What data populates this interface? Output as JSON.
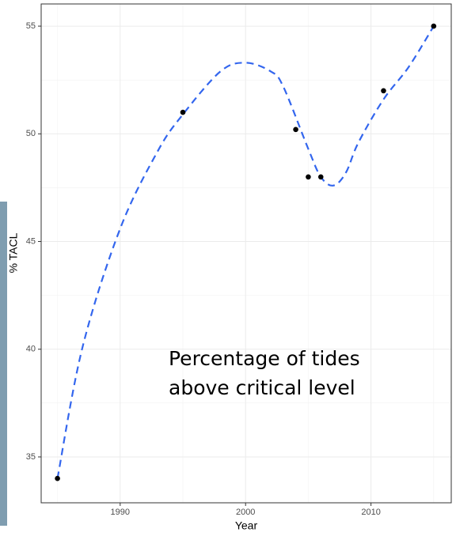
{
  "chart_data": {
    "type": "scatter",
    "x_label": "Year",
    "y_label": "% TACL",
    "annotation": [
      "Percentage of tides",
      "above critical level"
    ],
    "points": {
      "color": "#000000",
      "x": [
        1985,
        1995,
        2004,
        2005,
        2006,
        2011,
        2015
      ],
      "y": [
        34,
        51,
        50.2,
        48,
        48,
        52,
        55
      ]
    },
    "fit": {
      "color": "#3366ee",
      "dashed": true,
      "x": [
        1985,
        1987,
        1990,
        1993,
        1995,
        1998,
        2000,
        2002,
        2003,
        2005,
        2006,
        2007,
        2008,
        2009,
        2011,
        2013,
        2015
      ],
      "y": [
        34,
        40.1,
        45.6,
        49.2,
        50.9,
        52.9,
        53.3,
        52.9,
        52.2,
        49.3,
        48.0,
        47.6,
        48.2,
        49.6,
        51.6,
        53.1,
        55
      ]
    },
    "xlim": [
      1983.7,
      2016.4
    ],
    "ylim": [
      32.87,
      56.03
    ],
    "xticks": [
      1990,
      2000,
      2010
    ],
    "yticks": [
      35,
      40,
      45,
      50,
      55
    ],
    "x_minor_grid": [
      1985,
      1995,
      2005,
      2015
    ],
    "y_minor_grid": [
      37.5,
      42.5,
      47.5,
      52.5
    ],
    "grid": true
  }
}
